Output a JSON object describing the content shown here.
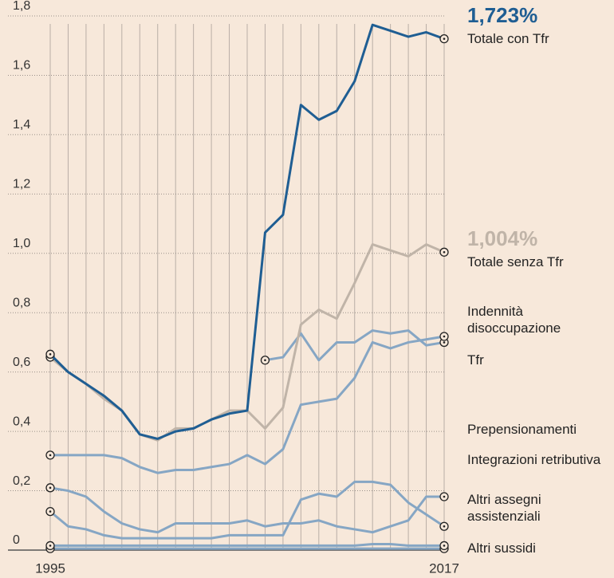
{
  "chart_data": {
    "type": "line",
    "x": [
      1995,
      1996,
      1997,
      1998,
      1999,
      2000,
      2001,
      2002,
      2003,
      2004,
      2005,
      2006,
      2007,
      2008,
      2009,
      2010,
      2011,
      2012,
      2013,
      2014,
      2015,
      2016,
      2017
    ],
    "xlim": [
      1995,
      2017
    ],
    "xticks": [
      1995,
      2017
    ],
    "ylim": [
      0,
      1.8
    ],
    "yticks": [
      0,
      {
        "value": 0.2,
        "label": "0,2"
      },
      {
        "value": 0.4,
        "label": "0,4"
      },
      {
        "value": 0.6,
        "label": "0,6"
      },
      {
        "value": 0.8,
        "label": "0,8"
      },
      {
        "value": 1.0,
        "label": "1,0"
      },
      {
        "value": 1.2,
        "label": "1,2"
      },
      {
        "value": 1.4,
        "label": "1,4"
      },
      {
        "value": 1.6,
        "label": "1,6"
      },
      {
        "value": 1.8,
        "label": "1,8"
      }
    ],
    "grid": true,
    "series": [
      {
        "name": "Totale con Tfr",
        "color": "#1f5e93",
        "values": [
          0.66,
          0.6,
          0.56,
          0.52,
          0.47,
          0.39,
          0.375,
          0.4,
          0.41,
          0.44,
          0.46,
          0.47,
          1.07,
          1.13,
          1.5,
          1.45,
          1.48,
          1.58,
          1.77,
          1.75,
          1.73,
          1.745,
          1.723
        ],
        "value_labels": [
          null,
          null,
          null,
          null,
          null,
          null,
          null,
          null,
          null,
          null,
          null,
          null,
          null,
          null,
          null,
          null,
          null,
          null,
          null,
          null,
          null,
          null,
          "1,723%"
        ]
      },
      {
        "name": "Totale senza Tfr",
        "color": "#c0b4a8",
        "values": [
          0.65,
          0.6,
          0.56,
          0.51,
          0.47,
          0.39,
          0.37,
          0.41,
          0.41,
          0.44,
          0.47,
          0.47,
          0.41,
          0.48,
          0.76,
          0.81,
          0.78,
          0.9,
          1.03,
          1.01,
          0.99,
          1.03,
          1.004
        ],
        "value_labels": [
          null,
          null,
          null,
          null,
          null,
          null,
          null,
          null,
          null,
          null,
          null,
          null,
          null,
          null,
          null,
          null,
          null,
          null,
          null,
          null,
          null,
          null,
          "1,004%"
        ]
      },
      {
        "name": "Indennità disoccupazione",
        "color": "#86a6c4",
        "values": [
          0.32,
          0.32,
          0.32,
          0.32,
          0.31,
          0.28,
          0.26,
          0.27,
          0.27,
          0.28,
          0.29,
          0.32,
          0.29,
          0.34,
          0.49,
          0.5,
          0.51,
          0.58,
          0.7,
          0.68,
          0.7,
          0.71,
          0.72
        ]
      },
      {
        "name": "Tfr",
        "color": "#86a6c4",
        "values": [
          null,
          null,
          null,
          null,
          null,
          null,
          null,
          null,
          null,
          null,
          null,
          null,
          0.64,
          0.65,
          0.73,
          0.64,
          0.7,
          0.7,
          0.74,
          0.73,
          0.74,
          0.69,
          0.7
        ]
      },
      {
        "name": "Prepensionamenti",
        "color": "#86a6c4",
        "values": [
          0.015,
          0.015,
          0.015,
          0.015,
          0.015,
          0.015,
          0.015,
          0.015,
          0.015,
          0.015,
          0.015,
          0.015,
          0.015,
          0.015,
          0.015,
          0.015,
          0.015,
          0.015,
          0.02,
          0.02,
          0.015,
          0.015,
          0.015
        ]
      },
      {
        "name": "Integrazioni retributiva",
        "color": "#86a6c4",
        "values": [
          0.13,
          0.08,
          0.07,
          0.05,
          0.04,
          0.04,
          0.04,
          0.04,
          0.04,
          0.04,
          0.05,
          0.05,
          0.05,
          0.05,
          0.17,
          0.19,
          0.18,
          0.23,
          0.23,
          0.22,
          0.16,
          0.12,
          0.08
        ]
      },
      {
        "name": "Altri assegni assistenziali",
        "color": "#86a6c4",
        "values": [
          0.21,
          0.2,
          0.18,
          0.13,
          0.09,
          0.07,
          0.06,
          0.09,
          0.09,
          0.09,
          0.09,
          0.1,
          0.08,
          0.09,
          0.09,
          0.1,
          0.08,
          0.07,
          0.06,
          0.08,
          0.1,
          0.18,
          0.18
        ]
      },
      {
        "name": "Altri sussidi",
        "color": "#86a6c4",
        "values": [
          0.005,
          0.005,
          0.005,
          0.005,
          0.005,
          0.005,
          0.005,
          0.005,
          0.005,
          0.005,
          0.005,
          0.005,
          0.005,
          0.005,
          0.005,
          0.005,
          0.005,
          0.005,
          0.005,
          0.005,
          0.005,
          0.005,
          0.005
        ]
      }
    ]
  }
}
